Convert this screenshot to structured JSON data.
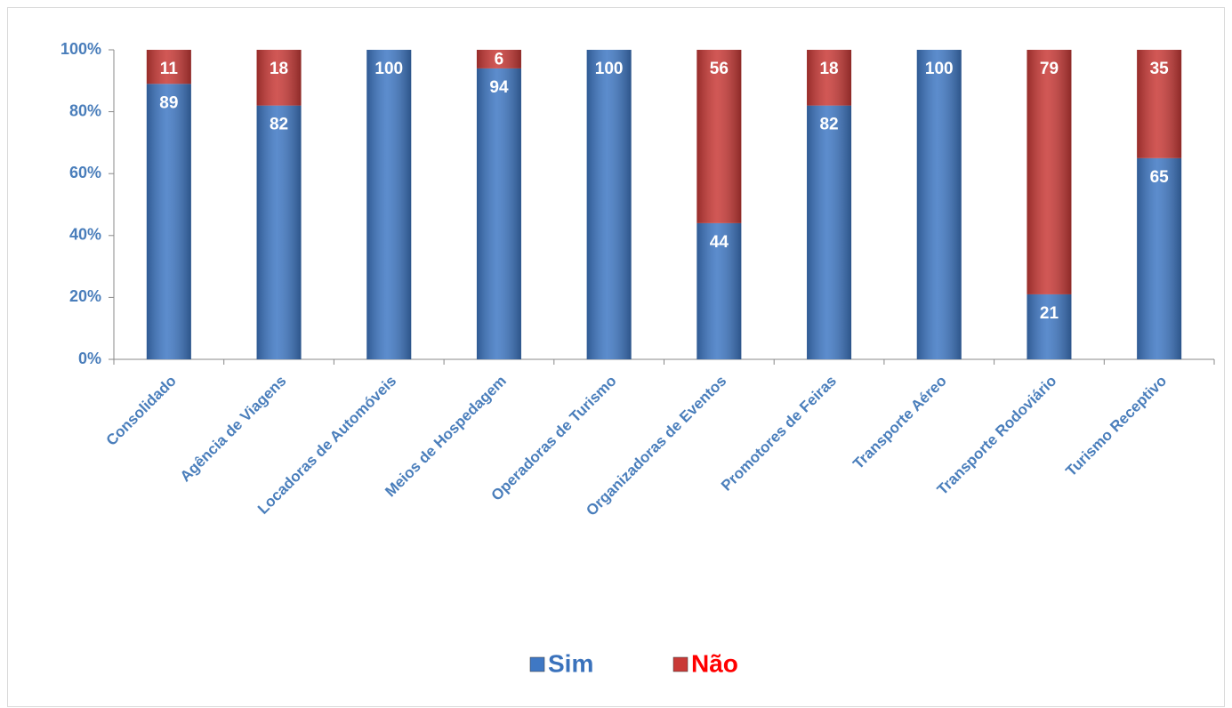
{
  "chart_data": {
    "type": "stacked_bar",
    "categories": [
      "Consolidado",
      "Agência de Viagens",
      "Locadoras de Automóveis",
      "Meios de Hospedagem",
      "Operadoras de Turismo",
      "Organizadoras de Eventos",
      "Promotores de Feiras",
      "Transporte Aéreo",
      "Transporte Rodoviário",
      "Turismo Receptivo"
    ],
    "series": [
      {
        "name": "Sim",
        "color": "#3f78c4",
        "values": [
          89,
          82,
          100,
          94,
          100,
          44,
          82,
          100,
          21,
          65
        ]
      },
      {
        "name": "Não",
        "color": "#c93a37",
        "values": [
          11,
          18,
          null,
          6,
          null,
          56,
          18,
          null,
          79,
          35
        ]
      }
    ],
    "ylim": [
      0,
      100
    ],
    "yticks": [
      {
        "value": 0,
        "label": "0%"
      },
      {
        "value": 20,
        "label": "20%"
      },
      {
        "value": 40,
        "label": "40%"
      },
      {
        "value": 60,
        "label": "60%"
      },
      {
        "value": 80,
        "label": "80%"
      },
      {
        "value": 100,
        "label": "100%"
      }
    ],
    "legend": "bottom"
  }
}
